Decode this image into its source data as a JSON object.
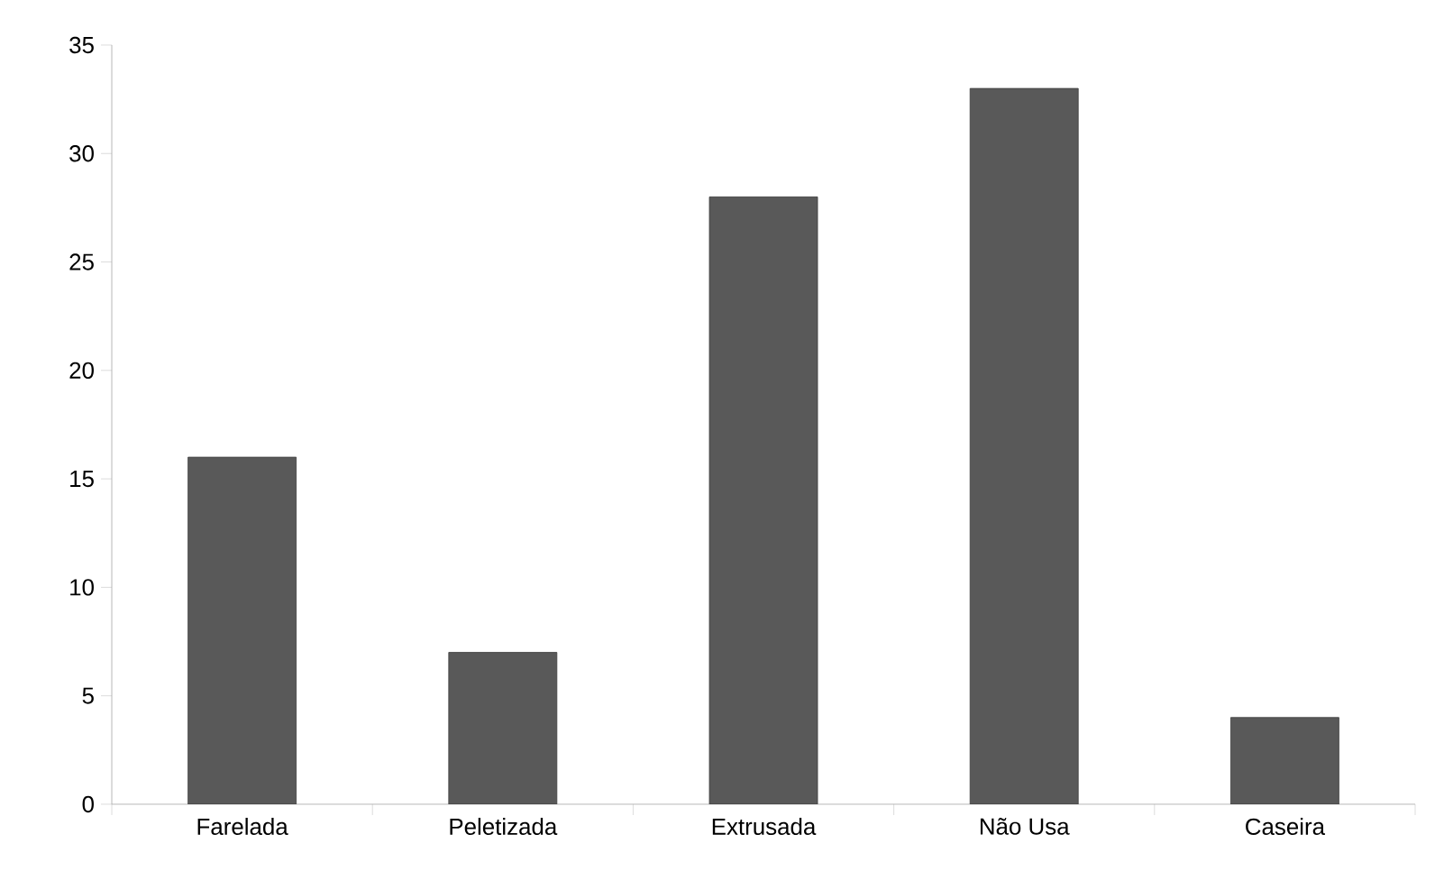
{
  "chart_data": {
    "type": "bar",
    "categories": [
      "Farelada",
      "Peletizada",
      "Extrusada",
      "Não Usa",
      "Caseira"
    ],
    "values": [
      16,
      7,
      28,
      33,
      4
    ],
    "color": "#595959",
    "ylim": [
      0,
      35
    ],
    "yticks": [
      0,
      5,
      10,
      15,
      20,
      25,
      30,
      35
    ],
    "grid": false
  }
}
